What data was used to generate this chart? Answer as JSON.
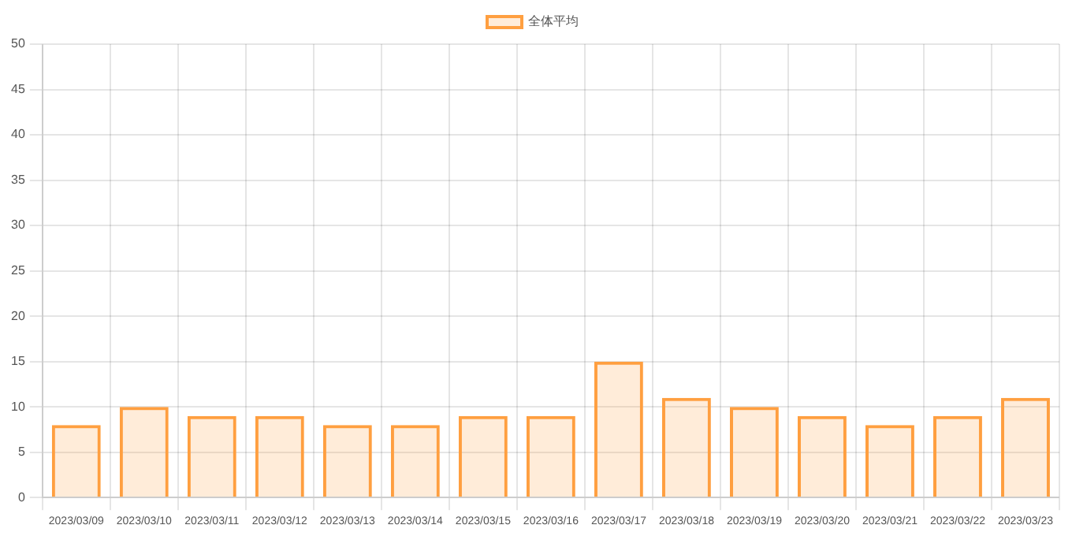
{
  "chart_data": {
    "type": "bar",
    "categories": [
      "2023/03/09",
      "2023/03/10",
      "2023/03/11",
      "2023/03/12",
      "2023/03/13",
      "2023/03/14",
      "2023/03/15",
      "2023/03/16",
      "2023/03/17",
      "2023/03/18",
      "2023/03/19",
      "2023/03/20",
      "2023/03/21",
      "2023/03/22",
      "2023/03/23"
    ],
    "series": [
      {
        "name": "全体平均",
        "color": "#ff9f40",
        "values": [
          8,
          10,
          9,
          9,
          8,
          8,
          9,
          9,
          15,
          11,
          10,
          9,
          8,
          9,
          11
        ]
      }
    ],
    "ylim": [
      0,
      50
    ],
    "yticks": [
      0,
      5,
      10,
      15,
      20,
      25,
      30,
      35,
      40,
      45,
      50
    ],
    "grid": true,
    "legend": "top"
  }
}
